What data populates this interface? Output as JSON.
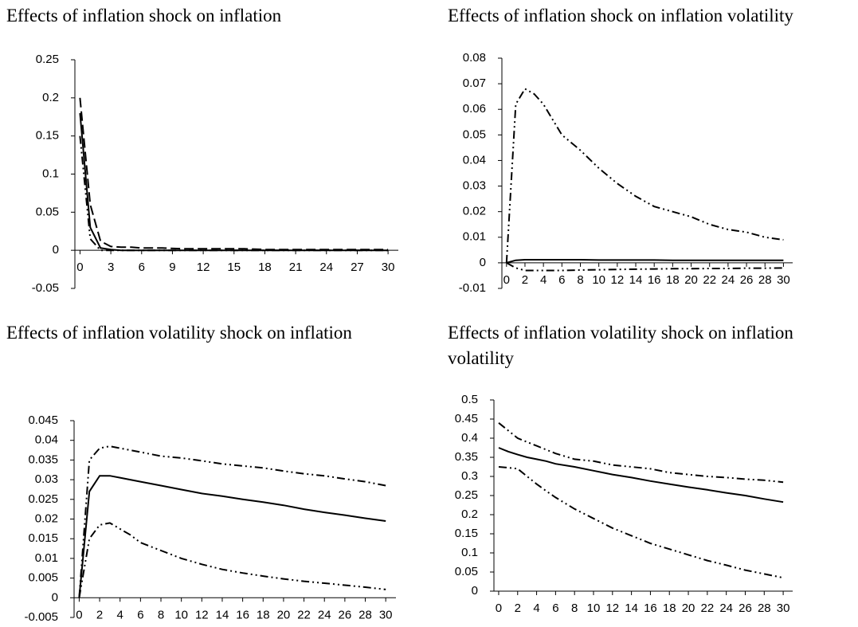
{
  "chart_data": [
    {
      "type": "line",
      "title": "Effects of inflation shock on inflation",
      "x": [
        0,
        1,
        2,
        3,
        4,
        5,
        6,
        8,
        10,
        12,
        14,
        16,
        18,
        20,
        22,
        24,
        26,
        28,
        30
      ],
      "xlim": [
        -0.5,
        31
      ],
      "xticks": [
        0,
        3,
        6,
        9,
        12,
        15,
        18,
        21,
        24,
        27,
        30
      ],
      "ylim": [
        -0.05,
        0.25
      ],
      "yticks": [
        -0.05,
        0,
        0.05,
        0.1,
        0.15,
        0.2,
        0.25
      ],
      "series": [
        {
          "color": "#000000",
          "dash": "long-dash",
          "values": [
            0.2,
            0.06,
            0.012,
            0.005,
            0.004,
            0.004,
            0.003,
            0.003,
            0.002,
            0.002,
            0.002,
            0.002,
            0.001,
            0.001,
            0.001,
            0.001,
            0.001,
            0.001,
            0.001
          ]
        },
        {
          "color": "#000000",
          "dash": "solid",
          "values": [
            0.18,
            0.03,
            0.003,
            0.001,
            0,
            0,
            0,
            0,
            0,
            0,
            0,
            0,
            0,
            0,
            0,
            0,
            0,
            0,
            0
          ]
        },
        {
          "color": "#000000",
          "dash": "dash-dot-dot",
          "values": [
            0.15,
            0.015,
            0,
            0,
            0,
            0,
            0,
            0,
            0,
            0,
            0,
            0,
            0,
            0,
            0,
            0,
            0,
            0,
            0
          ]
        }
      ]
    },
    {
      "type": "line",
      "title": "Effects of inflation shock on inflation volatility",
      "x": [
        0,
        1,
        2,
        3,
        4,
        5,
        6,
        8,
        10,
        12,
        14,
        16,
        18,
        20,
        22,
        24,
        26,
        28,
        30
      ],
      "xlim": [
        -0.5,
        31
      ],
      "xticks": [
        0,
        2,
        4,
        6,
        8,
        10,
        12,
        14,
        16,
        18,
        20,
        22,
        24,
        26,
        28,
        30
      ],
      "ylim": [
        -0.01,
        0.08
      ],
      "yticks": [
        -0.01,
        0,
        0.01,
        0.02,
        0.03,
        0.04,
        0.05,
        0.06,
        0.07,
        0.08
      ],
      "series": [
        {
          "color": "#000000",
          "dash": "dash-dot-dot",
          "values": [
            0,
            0.062,
            0.068,
            0.066,
            0.062,
            0.056,
            0.05,
            0.044,
            0.037,
            0.031,
            0.026,
            0.022,
            0.02,
            0.018,
            0.015,
            0.013,
            0.012,
            0.01,
            0.009
          ]
        },
        {
          "color": "#000000",
          "dash": "solid",
          "values": [
            0,
            0.001,
            0.0012,
            0.0012,
            0.0012,
            0.0012,
            0.0012,
            0.0012,
            0.0011,
            0.0011,
            0.0011,
            0.0011,
            0.001,
            0.001,
            0.001,
            0.001,
            0.001,
            0.001,
            0.001
          ]
        },
        {
          "color": "#000000",
          "dash": "dash-dot-dot",
          "values": [
            0,
            -0.002,
            -0.003,
            -0.003,
            -0.003,
            -0.003,
            -0.003,
            -0.0028,
            -0.0027,
            -0.0026,
            -0.0025,
            -0.0024,
            -0.0023,
            -0.0023,
            -0.0022,
            -0.0022,
            -0.0021,
            -0.0021,
            -0.002
          ]
        }
      ]
    },
    {
      "type": "line",
      "title": "Effects of inflation volatility shock on inflation",
      "x": [
        0,
        1,
        2,
        3,
        4,
        5,
        6,
        8,
        10,
        12,
        14,
        16,
        18,
        20,
        22,
        24,
        26,
        28,
        30
      ],
      "xlim": [
        -0.5,
        31
      ],
      "xticks": [
        0,
        2,
        4,
        6,
        8,
        10,
        12,
        14,
        16,
        18,
        20,
        22,
        24,
        26,
        28,
        30
      ],
      "ylim": [
        -0.005,
        0.045
      ],
      "yticks": [
        -0.005,
        0,
        0.005,
        0.01,
        0.015,
        0.02,
        0.025,
        0.03,
        0.035,
        0.04,
        0.045
      ],
      "series": [
        {
          "color": "#000000",
          "dash": "dash-dot-dot",
          "values": [
            0,
            0.035,
            0.038,
            0.0385,
            0.038,
            0.0375,
            0.037,
            0.036,
            0.0355,
            0.0348,
            0.034,
            0.0335,
            0.033,
            0.0322,
            0.0315,
            0.031,
            0.0302,
            0.0295,
            0.0285
          ]
        },
        {
          "color": "#000000",
          "dash": "solid",
          "values": [
            0,
            0.027,
            0.031,
            0.031,
            0.0305,
            0.03,
            0.0295,
            0.0285,
            0.0275,
            0.0265,
            0.0258,
            0.025,
            0.0243,
            0.0235,
            0.0225,
            0.0217,
            0.021,
            0.0202,
            0.0195
          ]
        },
        {
          "color": "#000000",
          "dash": "dash-dot-dot",
          "values": [
            0,
            0.015,
            0.0185,
            0.019,
            0.0175,
            0.016,
            0.014,
            0.012,
            0.01,
            0.0085,
            0.0072,
            0.0063,
            0.0055,
            0.0048,
            0.0042,
            0.0037,
            0.0032,
            0.0027,
            0.0021
          ]
        }
      ]
    },
    {
      "type": "line",
      "title": "Effects of inflation volatility shock on inflation volatility",
      "x": [
        0,
        1,
        2,
        3,
        4,
        5,
        6,
        8,
        10,
        12,
        14,
        16,
        18,
        20,
        22,
        24,
        26,
        28,
        30
      ],
      "xlim": [
        -0.5,
        31
      ],
      "xticks": [
        0,
        2,
        4,
        6,
        8,
        10,
        12,
        14,
        16,
        18,
        20,
        22,
        24,
        26,
        28,
        30
      ],
      "ylim": [
        0,
        0.5
      ],
      "yticks": [
        0,
        0.05,
        0.1,
        0.15,
        0.2,
        0.25,
        0.3,
        0.35,
        0.4,
        0.45,
        0.5
      ],
      "series": [
        {
          "color": "#000000",
          "dash": "dash-dot-dot",
          "values": [
            0.44,
            0.42,
            0.4,
            0.39,
            0.38,
            0.37,
            0.36,
            0.345,
            0.34,
            0.33,
            0.325,
            0.32,
            0.31,
            0.305,
            0.3,
            0.297,
            0.293,
            0.29,
            0.285
          ]
        },
        {
          "color": "#000000",
          "dash": "solid",
          "values": [
            0.375,
            0.365,
            0.357,
            0.35,
            0.345,
            0.34,
            0.333,
            0.325,
            0.315,
            0.305,
            0.297,
            0.288,
            0.28,
            0.272,
            0.265,
            0.257,
            0.25,
            0.241,
            0.233
          ]
        },
        {
          "color": "#000000",
          "dash": "dash-dot-dot",
          "values": [
            0.325,
            0.323,
            0.32,
            0.3,
            0.28,
            0.262,
            0.245,
            0.215,
            0.19,
            0.165,
            0.145,
            0.125,
            0.11,
            0.095,
            0.08,
            0.068,
            0.055,
            0.045,
            0.035
          ]
        }
      ]
    }
  ]
}
